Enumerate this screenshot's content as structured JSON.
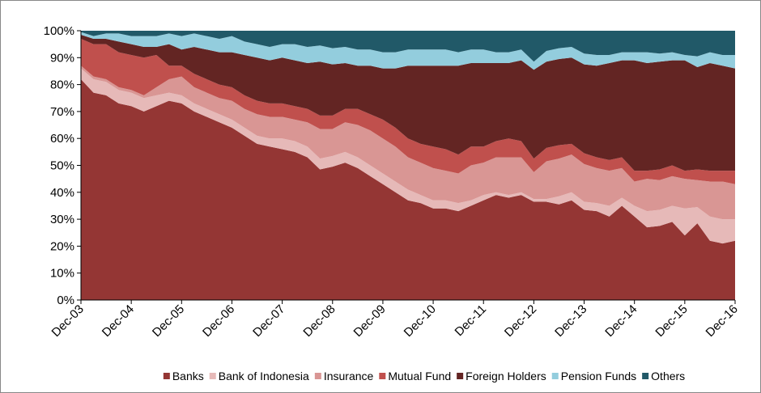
{
  "chart_data": {
    "type": "stacked-area",
    "categories": [
      "Dec-03",
      null,
      null,
      null,
      "Dec-04",
      null,
      null,
      null,
      "Dec-05",
      null,
      null,
      null,
      "Dec-06",
      null,
      null,
      null,
      "Dec-07",
      null,
      null,
      null,
      "Dec-08",
      null,
      null,
      null,
      "Dec-09",
      null,
      null,
      null,
      "Dec-10",
      null,
      null,
      null,
      "Dec-11",
      null,
      null,
      null,
      "Dec-12",
      null,
      null,
      null,
      "Dec-13",
      null,
      null,
      null,
      "Dec-14",
      null,
      null,
      null,
      "Dec-15",
      null,
      null,
      null,
      "Dec-16"
    ],
    "series": [
      {
        "name": "Banks",
        "color": "#943634",
        "values": [
          82,
          77,
          76,
          73,
          72,
          70,
          72,
          74,
          73,
          70,
          68,
          66,
          64,
          61,
          58,
          57,
          56,
          55,
          53,
          48.5,
          49.5,
          51,
          49,
          46,
          43,
          40,
          37,
          36,
          34,
          34,
          33,
          35,
          37,
          39,
          38,
          39,
          36.5,
          36.5,
          35.5,
          37,
          33.5,
          33,
          31,
          35,
          31,
          27,
          27.5,
          29,
          24,
          28.5,
          22,
          21,
          22
        ]
      },
      {
        "name": "Bank of Indonesia",
        "color": "#e6b9b8",
        "values": [
          4,
          5,
          5,
          5,
          5,
          5,
          4,
          3,
          3,
          3,
          3,
          3,
          3,
          3,
          3,
          3,
          4,
          4,
          4,
          4,
          4,
          4,
          4,
          4,
          4,
          4,
          4,
          3,
          3,
          3,
          3,
          2,
          2,
          1,
          1,
          1,
          1,
          1,
          3,
          3,
          3,
          3,
          4,
          3,
          4,
          6,
          6,
          6,
          10,
          6,
          9,
          9,
          8
        ]
      },
      {
        "name": "Insurance",
        "color": "#d99694",
        "values": [
          1,
          1,
          1,
          1,
          1,
          1,
          3,
          5,
          7,
          6,
          6,
          6,
          7,
          7,
          8,
          8,
          8,
          8,
          9,
          11,
          10,
          11,
          12,
          13,
          13,
          13,
          12,
          12,
          12,
          11,
          11,
          13,
          12,
          13,
          14,
          13,
          10,
          14,
          14,
          14,
          14,
          13,
          13,
          11,
          9,
          12,
          11,
          11,
          11,
          10,
          13,
          14,
          13
        ]
      },
      {
        "name": "Mutual Fund",
        "color": "#c0504d",
        "values": [
          10,
          12,
          13,
          13,
          13,
          14,
          12,
          5,
          4,
          5,
          5,
          5,
          5,
          5,
          5,
          5,
          5,
          5,
          5,
          5,
          5,
          5,
          6,
          6,
          7,
          7,
          7,
          7,
          8,
          8,
          7,
          7,
          6,
          6,
          7,
          6,
          5,
          5,
          5,
          4,
          4,
          4,
          4,
          4,
          4,
          3,
          4,
          4,
          3,
          4,
          4,
          4,
          5
        ]
      },
      {
        "name": "Foreign Holders",
        "color": "#632523",
        "values": [
          1.5,
          2,
          2,
          4,
          4,
          4,
          3,
          8,
          6,
          10,
          11,
          12,
          13,
          15,
          16,
          16,
          17,
          17,
          17,
          20,
          19,
          17,
          16,
          18,
          19,
          22,
          27,
          29,
          30,
          31,
          33,
          31,
          31,
          29,
          28,
          30,
          33,
          32,
          32,
          32,
          33,
          34,
          36,
          36,
          41,
          40,
          40,
          39,
          41,
          38,
          40,
          39,
          38
        ]
      },
      {
        "name": "Pension Funds",
        "color": "#93cddd",
        "values": [
          1,
          1,
          2,
          3,
          3,
          4,
          4,
          4,
          5,
          5,
          5,
          5,
          6,
          5,
          5,
          5,
          5,
          6,
          6,
          6,
          6,
          6,
          6,
          6,
          6,
          6,
          6,
          6,
          6,
          6,
          5,
          5,
          5,
          4,
          4,
          4,
          3,
          4,
          4,
          4,
          4,
          4,
          3,
          3,
          3,
          4,
          3,
          3,
          2,
          4,
          4,
          4,
          5
        ]
      },
      {
        "name": "Others",
        "color": "#215968",
        "values": [
          0.5,
          2,
          1,
          1,
          2,
          2,
          2,
          1,
          2,
          1,
          2,
          3,
          2,
          4,
          5,
          6,
          5,
          5,
          6,
          5.5,
          6.5,
          6,
          7,
          7,
          8,
          8,
          7,
          7,
          7,
          7,
          8,
          7,
          7,
          8,
          8,
          7,
          11.5,
          7.5,
          6.5,
          6,
          8.5,
          9,
          9,
          8,
          8,
          8,
          8.5,
          8,
          9,
          9.5,
          8,
          9,
          9
        ]
      }
    ],
    "ylim": [
      0,
      100
    ],
    "yticks": [
      {
        "value": 0,
        "label": "0%"
      },
      {
        "value": 10,
        "label": "10%"
      },
      {
        "value": 20,
        "label": "20%"
      },
      {
        "value": 30,
        "label": "30%"
      },
      {
        "value": 40,
        "label": "40%"
      },
      {
        "value": 50,
        "label": "50%"
      },
      {
        "value": 60,
        "label": "60%"
      },
      {
        "value": 70,
        "label": "70%"
      },
      {
        "value": 80,
        "label": "80%"
      },
      {
        "value": 90,
        "label": "90%"
      },
      {
        "value": 100,
        "label": "100%"
      }
    ],
    "legend": "bottom"
  }
}
